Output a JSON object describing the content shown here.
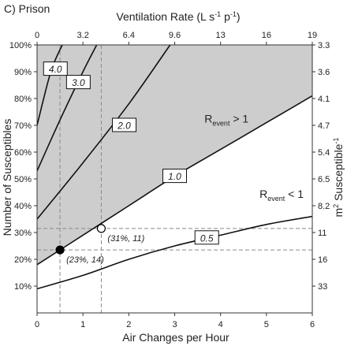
{
  "panel_label": "C) Prison",
  "chart_data": {
    "type": "line",
    "xlabel": "Air Changes per Hour",
    "ylabel": "Number of Susceptibles",
    "top_xlabel": "Ventilation Rate (L s",
    "top_xlabel_sup1": "-1",
    "top_xlabel_mid": " p",
    "top_xlabel_sup2": "-1",
    "top_xlabel_end": ")",
    "right_ylabel": "m",
    "right_ylabel_sup1": "2",
    "right_ylabel_mid": " Susceptible",
    "right_ylabel_sup2": "-1",
    "xlim": [
      0,
      6
    ],
    "ylim": [
      0,
      100
    ],
    "x_ticks": [
      "0",
      "1",
      "2",
      "3",
      "4",
      "5",
      "6"
    ],
    "y_ticks": [
      "10%",
      "20%",
      "30%",
      "40%",
      "50%",
      "60%",
      "70%",
      "80%",
      "90%",
      "100%"
    ],
    "top_ticks": [
      "0",
      "3.2",
      "6.4",
      "9.6",
      "13",
      "16",
      "19"
    ],
    "right_ticks": [
      "3.3",
      "3.6",
      "4.1",
      "4.7",
      "5.4",
      "6.5",
      "8.2",
      "11",
      "16",
      "33"
    ],
    "series": [
      {
        "label": "4.0",
        "points": [
          [
            0,
            70
          ],
          [
            0.3,
            90
          ],
          [
            0.55,
            100
          ]
        ],
        "label_at": [
          0.4,
          91
        ]
      },
      {
        "label": "3.0",
        "points": [
          [
            0,
            53
          ],
          [
            0.5,
            72
          ],
          [
            1.0,
            90
          ],
          [
            1.3,
            100
          ]
        ],
        "label_at": [
          0.9,
          86
        ]
      },
      {
        "label": "2.0",
        "points": [
          [
            0,
            35
          ],
          [
            1.0,
            56
          ],
          [
            2.0,
            78
          ],
          [
            2.9,
            100
          ]
        ],
        "label_at": [
          1.9,
          70
        ]
      },
      {
        "label": "1.0",
        "points": [
          [
            0,
            18
          ],
          [
            1.0,
            29
          ],
          [
            2.0,
            40
          ],
          [
            3.0,
            51
          ],
          [
            4.0,
            61
          ],
          [
            5.0,
            71
          ],
          [
            6.0,
            81
          ]
        ],
        "label_at": [
          3.0,
          51
        ]
      },
      {
        "label": "0.5",
        "points": [
          [
            0,
            9
          ],
          [
            1.0,
            14
          ],
          [
            2.0,
            20
          ],
          [
            3.0,
            25
          ],
          [
            4.0,
            29
          ],
          [
            5.0,
            33
          ],
          [
            6.0,
            36
          ]
        ],
        "label_at": [
          3.7,
          28
        ]
      }
    ],
    "shaded_region": "above R=1.0 curve",
    "regions": [
      {
        "text": "R",
        "sub": "event",
        "rest": " > 1",
        "at": [
          3.65,
          71
        ]
      },
      {
        "text": "R",
        "sub": "event",
        "rest": " < 1",
        "at": [
          4.85,
          43
        ]
      }
    ],
    "points": [
      {
        "x": 0.5,
        "y": 23.5,
        "filled": true,
        "label": "(23%, 14)"
      },
      {
        "x": 1.4,
        "y": 31.5,
        "filled": false,
        "label": "(31%, 11)"
      }
    ],
    "guides": {
      "x_values": [
        0.5,
        1.4
      ],
      "y_values": [
        23.5,
        31.5
      ]
    }
  }
}
